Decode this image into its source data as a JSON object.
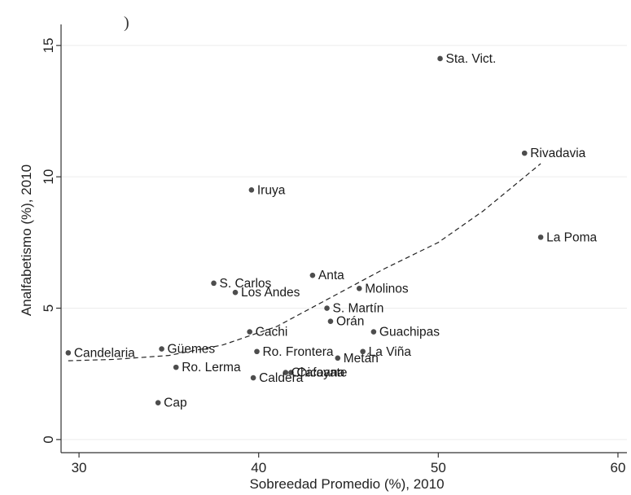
{
  "top_fragment": ")",
  "chart_data": {
    "type": "scatter",
    "title": "",
    "xlabel": "Sobreedad Promedio (%), 2010",
    "ylabel": "Analfabetismo (%), 2010",
    "xlim": [
      29,
      60.5
    ],
    "ylim": [
      -0.5,
      15.8
    ],
    "xticks": [
      30,
      40,
      50,
      60
    ],
    "yticks": [
      0,
      5,
      10,
      15
    ],
    "grid": true,
    "legend": "none",
    "marker_color": "#4d4d4d",
    "fit_line_style": "dashed",
    "points": [
      {
        "label": "Sta. Vict.",
        "x": 50.1,
        "y": 14.5
      },
      {
        "label": "Rivadavia",
        "x": 54.8,
        "y": 10.9
      },
      {
        "label": "Iruya",
        "x": 39.6,
        "y": 9.5
      },
      {
        "label": "La Poma",
        "x": 55.7,
        "y": 7.7
      },
      {
        "label": "Anta",
        "x": 43.0,
        "y": 6.25
      },
      {
        "label": "S. Carlos",
        "x": 37.5,
        "y": 5.95
      },
      {
        "label": "Los Andes",
        "x": 38.7,
        "y": 5.6
      },
      {
        "label": "Molinos",
        "x": 45.6,
        "y": 5.75
      },
      {
        "label": "S. Martín",
        "x": 43.8,
        "y": 5.0
      },
      {
        "label": "Orán",
        "x": 44.0,
        "y": 4.5
      },
      {
        "label": "Guachipas",
        "x": 46.4,
        "y": 4.1
      },
      {
        "label": "Cachi",
        "x": 39.5,
        "y": 4.1
      },
      {
        "label": "Candelaria",
        "x": 29.4,
        "y": 3.3
      },
      {
        "label": "Güemes",
        "x": 34.6,
        "y": 3.45
      },
      {
        "label": "Ro. Frontera",
        "x": 39.9,
        "y": 3.35
      },
      {
        "label": "La Viña",
        "x": 45.8,
        "y": 3.35
      },
      {
        "label": "Metán",
        "x": 44.4,
        "y": 3.1
      },
      {
        "label": "Ro. Lerma",
        "x": 35.4,
        "y": 2.75
      },
      {
        "label": "Cafayate",
        "x": 41.8,
        "y": 2.55
      },
      {
        "label": "Chicoana",
        "x": 41.5,
        "y": 2.55
      },
      {
        "label": "Caldera",
        "x": 39.7,
        "y": 2.35
      },
      {
        "label": "Cap",
        "x": 34.4,
        "y": 1.4
      }
    ],
    "fit_line": [
      {
        "x": 29.4,
        "y": 3.0
      },
      {
        "x": 32,
        "y": 3.05
      },
      {
        "x": 35,
        "y": 3.2
      },
      {
        "x": 38,
        "y": 3.6
      },
      {
        "x": 41,
        "y": 4.3
      },
      {
        "x": 44,
        "y": 5.4
      },
      {
        "x": 47,
        "y": 6.5
      },
      {
        "x": 50,
        "y": 7.5
      },
      {
        "x": 52.5,
        "y": 8.7
      },
      {
        "x": 55.7,
        "y": 10.5
      }
    ]
  }
}
